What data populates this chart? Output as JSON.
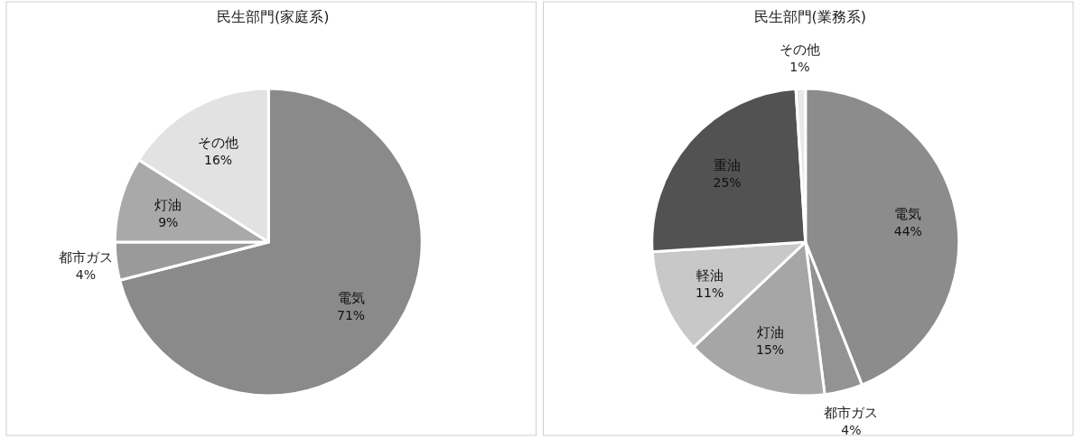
{
  "chart_data": [
    {
      "type": "pie",
      "title": "民生部門(家庭系)",
      "categories": [
        "電気",
        "都市ガス",
        "灯油",
        "その他"
      ],
      "values": [
        71,
        4,
        9,
        16
      ],
      "colors": [
        "#8a8a8a",
        "#9a9a9a",
        "#a9a9a9",
        "#e2e2e2"
      ],
      "value_labels": [
        "71%",
        "4%",
        "9%",
        "16%"
      ]
    },
    {
      "type": "pie",
      "title": "民生部門(業務系)",
      "categories": [
        "電気",
        "都市ガス",
        "灯油",
        "軽油",
        "重油",
        "その他"
      ],
      "values": [
        44,
        4,
        15,
        11,
        25,
        1
      ],
      "colors": [
        "#8c8c8c",
        "#939393",
        "#a6a6a6",
        "#c8c8c8",
        "#525252",
        "#e8e8e8"
      ],
      "value_labels": [
        "44%",
        "4%",
        "15%",
        "11%",
        "25%",
        "1%"
      ]
    }
  ]
}
